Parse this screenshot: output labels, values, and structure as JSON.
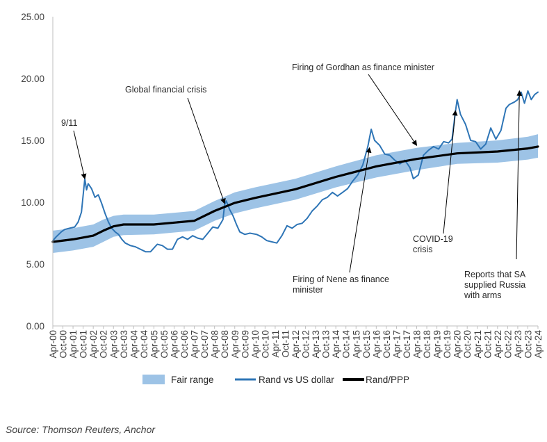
{
  "chart_data": {
    "type": "line",
    "title": "",
    "xlabel": "",
    "ylabel": "",
    "ylim": [
      0,
      25
    ],
    "y_ticks": [
      "0.00",
      "5.00",
      "10.00",
      "15.00",
      "20.00",
      "25.00"
    ],
    "x_start": "Apr-00",
    "x_end": "Apr-24",
    "x_ticks": [
      "Apr-00",
      "Oct-00",
      "Apr-01",
      "Oct-01",
      "Apr-02",
      "Oct-02",
      "Apr-03",
      "Oct-03",
      "Apr-04",
      "Oct-04",
      "Apr-05",
      "Oct-05",
      "Apr-06",
      "Oct-06",
      "Apr-07",
      "Oct-07",
      "Apr-08",
      "Oct-08",
      "Apr-09",
      "Oct-09",
      "Apr-10",
      "Oct-10",
      "Apr-11",
      "Oct-11",
      "Apr-12",
      "Oct-12",
      "Apr-13",
      "Oct-13",
      "Apr-14",
      "Oct-14",
      "Apr-15",
      "Oct-15",
      "Apr-16",
      "Oct-16",
      "Apr-17",
      "Oct-17",
      "Apr-18",
      "Oct-18",
      "Apr-19",
      "Oct-19",
      "Apr-20",
      "Oct-20",
      "Apr-21",
      "Oct-21",
      "Apr-22",
      "Oct-22",
      "Apr-23",
      "Oct-23",
      "Apr-24"
    ],
    "grid": false,
    "legend_position": "bottom",
    "series": [
      {
        "name": "Fair range",
        "kind": "band",
        "color": "#9DC3E6",
        "x": [
          "2000-04",
          "2001-04",
          "2002-04",
          "2002-10",
          "2003-04",
          "2003-10",
          "2005-04",
          "2007-04",
          "2008-04",
          "2009-04",
          "2010-04",
          "2012-04",
          "2014-04",
          "2016-04",
          "2018-04",
          "2020-04",
          "2022-04",
          "2023-10",
          "2024-04"
        ],
        "lower": [
          5.9,
          6.1,
          6.4,
          6.8,
          7.2,
          7.35,
          7.4,
          7.7,
          8.5,
          9.1,
          9.5,
          10.2,
          11.2,
          12.0,
          12.6,
          13.1,
          13.2,
          13.45,
          13.6
        ],
        "upper": [
          7.7,
          7.9,
          8.2,
          8.6,
          8.9,
          9.0,
          9.0,
          9.3,
          10.1,
          10.8,
          11.2,
          11.9,
          12.9,
          13.8,
          14.4,
          14.8,
          15.0,
          15.3,
          15.5
        ]
      },
      {
        "name": "Rand vs US dollar",
        "kind": "line",
        "color": "#2E75B6",
        "x": [
          "2000-04",
          "2000-06",
          "2000-09",
          "2000-11",
          "2001-02",
          "2001-05",
          "2001-07",
          "2001-09",
          "2001-11",
          "2001-12",
          "2002-01",
          "2002-03",
          "2002-05",
          "2002-07",
          "2002-09",
          "2002-11",
          "2003-01",
          "2003-03",
          "2003-05",
          "2003-07",
          "2003-09",
          "2003-11",
          "2004-02",
          "2004-05",
          "2004-08",
          "2004-11",
          "2005-02",
          "2005-06",
          "2005-09",
          "2005-12",
          "2006-03",
          "2006-06",
          "2006-09",
          "2006-12",
          "2007-03",
          "2007-06",
          "2007-09",
          "2007-12",
          "2008-03",
          "2008-06",
          "2008-09",
          "2008-10",
          "2008-11",
          "2009-01",
          "2009-03",
          "2009-05",
          "2009-07",
          "2009-10",
          "2010-01",
          "2010-05",
          "2010-08",
          "2010-11",
          "2011-02",
          "2011-05",
          "2011-08",
          "2011-11",
          "2012-02",
          "2012-05",
          "2012-08",
          "2012-11",
          "2013-02",
          "2013-05",
          "2013-08",
          "2013-11",
          "2014-02",
          "2014-05",
          "2014-08",
          "2014-11",
          "2015-02",
          "2015-05",
          "2015-08",
          "2015-11",
          "2016-01",
          "2016-03",
          "2016-06",
          "2016-09",
          "2016-12",
          "2017-03",
          "2017-06",
          "2017-09",
          "2017-12",
          "2018-02",
          "2018-05",
          "2018-08",
          "2018-11",
          "2019-02",
          "2019-05",
          "2019-08",
          "2019-11",
          "2020-01",
          "2020-03",
          "2020-04",
          "2020-06",
          "2020-09",
          "2020-12",
          "2021-03",
          "2021-06",
          "2021-09",
          "2021-12",
          "2022-03",
          "2022-06",
          "2022-09",
          "2022-11",
          "2023-02",
          "2023-04",
          "2023-06",
          "2023-08",
          "2023-10",
          "2023-12",
          "2024-02",
          "2024-04"
        ],
        "values": [
          6.9,
          7.2,
          7.6,
          7.8,
          7.9,
          8.0,
          8.4,
          9.2,
          11.9,
          11.0,
          11.5,
          11.1,
          10.4,
          10.6,
          9.9,
          9.1,
          8.4,
          7.9,
          7.6,
          7.4,
          7.0,
          6.7,
          6.5,
          6.4,
          6.2,
          6.0,
          6.0,
          6.6,
          6.5,
          6.2,
          6.2,
          7.0,
          7.2,
          7.0,
          7.3,
          7.1,
          7.0,
          7.5,
          8.0,
          7.9,
          8.6,
          9.8,
          10.1,
          9.4,
          8.9,
          8.2,
          7.6,
          7.4,
          7.5,
          7.4,
          7.2,
          6.9,
          6.8,
          6.7,
          7.3,
          8.1,
          7.9,
          8.2,
          8.3,
          8.7,
          9.3,
          9.7,
          10.2,
          10.4,
          10.8,
          10.5,
          10.8,
          11.1,
          11.7,
          12.2,
          13.0,
          14.5,
          15.9,
          15.0,
          14.6,
          13.9,
          13.8,
          13.4,
          13.1,
          13.4,
          12.8,
          11.9,
          12.2,
          13.8,
          14.2,
          14.5,
          14.3,
          14.9,
          14.8,
          15.1,
          17.3,
          18.3,
          17.1,
          16.3,
          15.0,
          14.9,
          14.3,
          14.7,
          16.0,
          15.1,
          15.8,
          17.6,
          17.9,
          18.1,
          18.3,
          18.9,
          18.0,
          19.0,
          18.3,
          18.7,
          18.9
        ]
      },
      {
        "name": "Rand/PPP",
        "kind": "line",
        "color": "#000000",
        "x": [
          "2000-04",
          "2001-04",
          "2002-04",
          "2002-10",
          "2003-04",
          "2003-10",
          "2005-04",
          "2007-04",
          "2008-04",
          "2009-04",
          "2010-04",
          "2012-04",
          "2014-04",
          "2016-04",
          "2018-04",
          "2020-04",
          "2022-04",
          "2023-10",
          "2024-04"
        ],
        "values": [
          6.8,
          7.0,
          7.3,
          7.7,
          8.05,
          8.2,
          8.2,
          8.5,
          9.3,
          9.95,
          10.35,
          11.05,
          12.05,
          12.9,
          13.5,
          13.95,
          14.1,
          14.35,
          14.5
        ]
      }
    ],
    "annotations": [
      {
        "lines": [
          "9/11"
        ],
        "target_x": "2001-11",
        "target_y": 11.9
      },
      {
        "lines": [
          "Global financial crisis"
        ],
        "target_x": "2008-10",
        "target_y": 9.9
      },
      {
        "lines": [
          "Firing of Gordhan as finance minister"
        ],
        "target_x": "2018-04",
        "target_y": 14.6
      },
      {
        "lines": [
          "COVID-19",
          "crisis"
        ],
        "target_x": "2020-03",
        "target_y": 17.4
      },
      {
        "lines": [
          "Firing of Nene as finance",
          "minister"
        ],
        "target_x": "2015-12",
        "target_y": 14.4
      },
      {
        "lines": [
          "Reports that SA",
          "supplied Russia",
          "with arms"
        ],
        "target_x": "2023-05",
        "target_y": 19.0
      }
    ]
  },
  "source_text": "Source: Thomson Reuters, Anchor"
}
